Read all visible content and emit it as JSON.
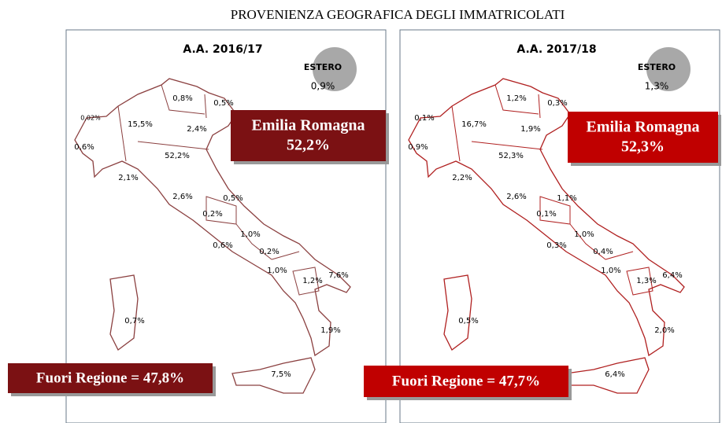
{
  "title": "PROVENIENZA GEOGRAFICA DEGLI IMMATRICOLATI",
  "panels": [
    {
      "title": "A.A. 2016/17",
      "estero": {
        "label": "ESTERO",
        "value": "0,9%"
      },
      "region_labels": [
        "0,02%",
        "15,5%",
        "0,6%",
        "0,8%",
        "0,5%",
        "2,4%",
        "52,2%",
        "2,1%",
        "2,6%",
        "0,5%",
        "0,2%",
        "1,0%",
        "0,6%",
        "0,2%",
        "1,0%",
        "7,6%",
        "1,2%",
        "1,9%",
        "0,7%",
        "7,5%"
      ],
      "highlight": {
        "region": "Emilia Romagna",
        "value": "52,2%"
      },
      "fuori_regione": "Fuori Regione = 47,8%"
    },
    {
      "title": "A.A. 2017/18",
      "estero": {
        "label": "ESTERO",
        "value": "1,3%"
      },
      "region_labels": [
        "0,1%",
        "16,7%",
        "0,9%",
        "1,2%",
        "0,3%",
        "1,9%",
        "52,3%",
        "2,2%",
        "2,6%",
        "1,1%",
        "0,1%",
        "1,0%",
        "0,3%",
        "0,4%",
        "1,0%",
        "6,4%",
        "1,3%",
        "2,0%",
        "0,5%",
        "6,4%"
      ],
      "highlight": {
        "region": "Emilia Romagna",
        "value": "52,3%"
      },
      "fuori_regione": "Fuori Regione = 47,7%"
    }
  ]
}
